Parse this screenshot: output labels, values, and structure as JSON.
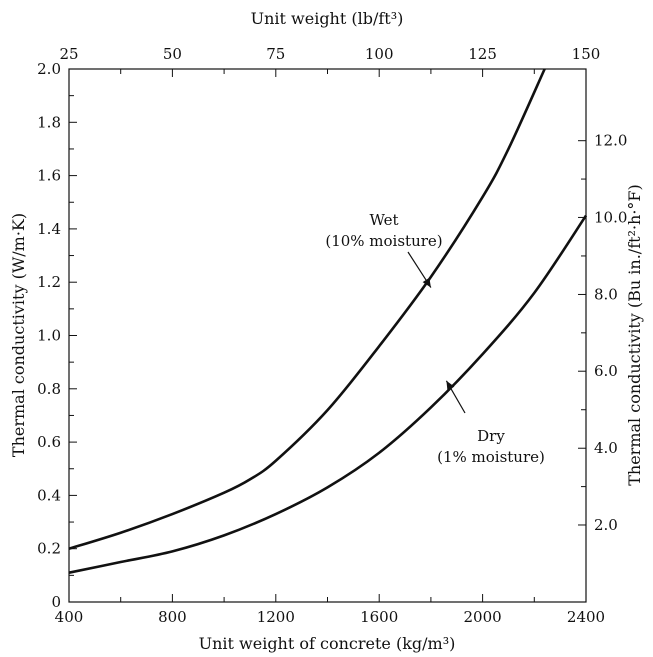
{
  "chart_data": {
    "type": "line",
    "title": "",
    "xlabel": "Unit weight of concrete (kg/m³)",
    "x2label": "Unit weight (lb/ft³)",
    "ylabel": "Thermal conductivity (W/m·K)",
    "y2label": "Thermal conductivity (Bu in./ft²·h·°F)",
    "xlim": [
      400,
      2400
    ],
    "ylim": [
      0,
      2.0
    ],
    "x_ticks": [
      400,
      800,
      1200,
      1600,
      2000,
      2400
    ],
    "x2_ticks": [
      25,
      50,
      75,
      100,
      125,
      150
    ],
    "x2_ticks_at_x": [
      400,
      800,
      1200,
      1600,
      2000,
      2400
    ],
    "y_ticks": [
      "0",
      "0.2",
      "0.4",
      "0.6",
      "0.8",
      "1.0",
      "1.2",
      "1.4",
      "1.6",
      "1.8",
      "2.0"
    ],
    "y2_ticks": [
      "2.0",
      "4.0",
      "6.0",
      "8.0",
      "10.0",
      "12.0"
    ],
    "y2_ticks_at_y": [
      0.289,
      0.577,
      0.866,
      1.154,
      1.443,
      1.731
    ],
    "grid": false,
    "series": [
      {
        "name": "Wet",
        "x": [
          400,
          600,
          800,
          1000,
          1100,
          1200,
          1400,
          1600,
          1800,
          2000,
          2100,
          2240
        ],
        "values": [
          0.2,
          0.26,
          0.33,
          0.41,
          0.46,
          0.53,
          0.72,
          0.96,
          1.22,
          1.52,
          1.7,
          2.0
        ]
      },
      {
        "name": "Dry",
        "x": [
          400,
          600,
          800,
          1000,
          1200,
          1400,
          1600,
          1800,
          2000,
          2200,
          2400
        ],
        "values": [
          0.11,
          0.15,
          0.19,
          0.25,
          0.33,
          0.43,
          0.56,
          0.73,
          0.93,
          1.16,
          1.45
        ]
      }
    ],
    "annotations": [
      {
        "id": "wet",
        "lines": [
          "Wet",
          "(10% moisture)"
        ],
        "points_to": {
          "x": 1800,
          "y": 1.18
        }
      },
      {
        "id": "dry",
        "lines": [
          "Dry",
          "(1% moisture)"
        ],
        "points_to": {
          "x": 1860,
          "y": 0.83
        }
      }
    ]
  }
}
